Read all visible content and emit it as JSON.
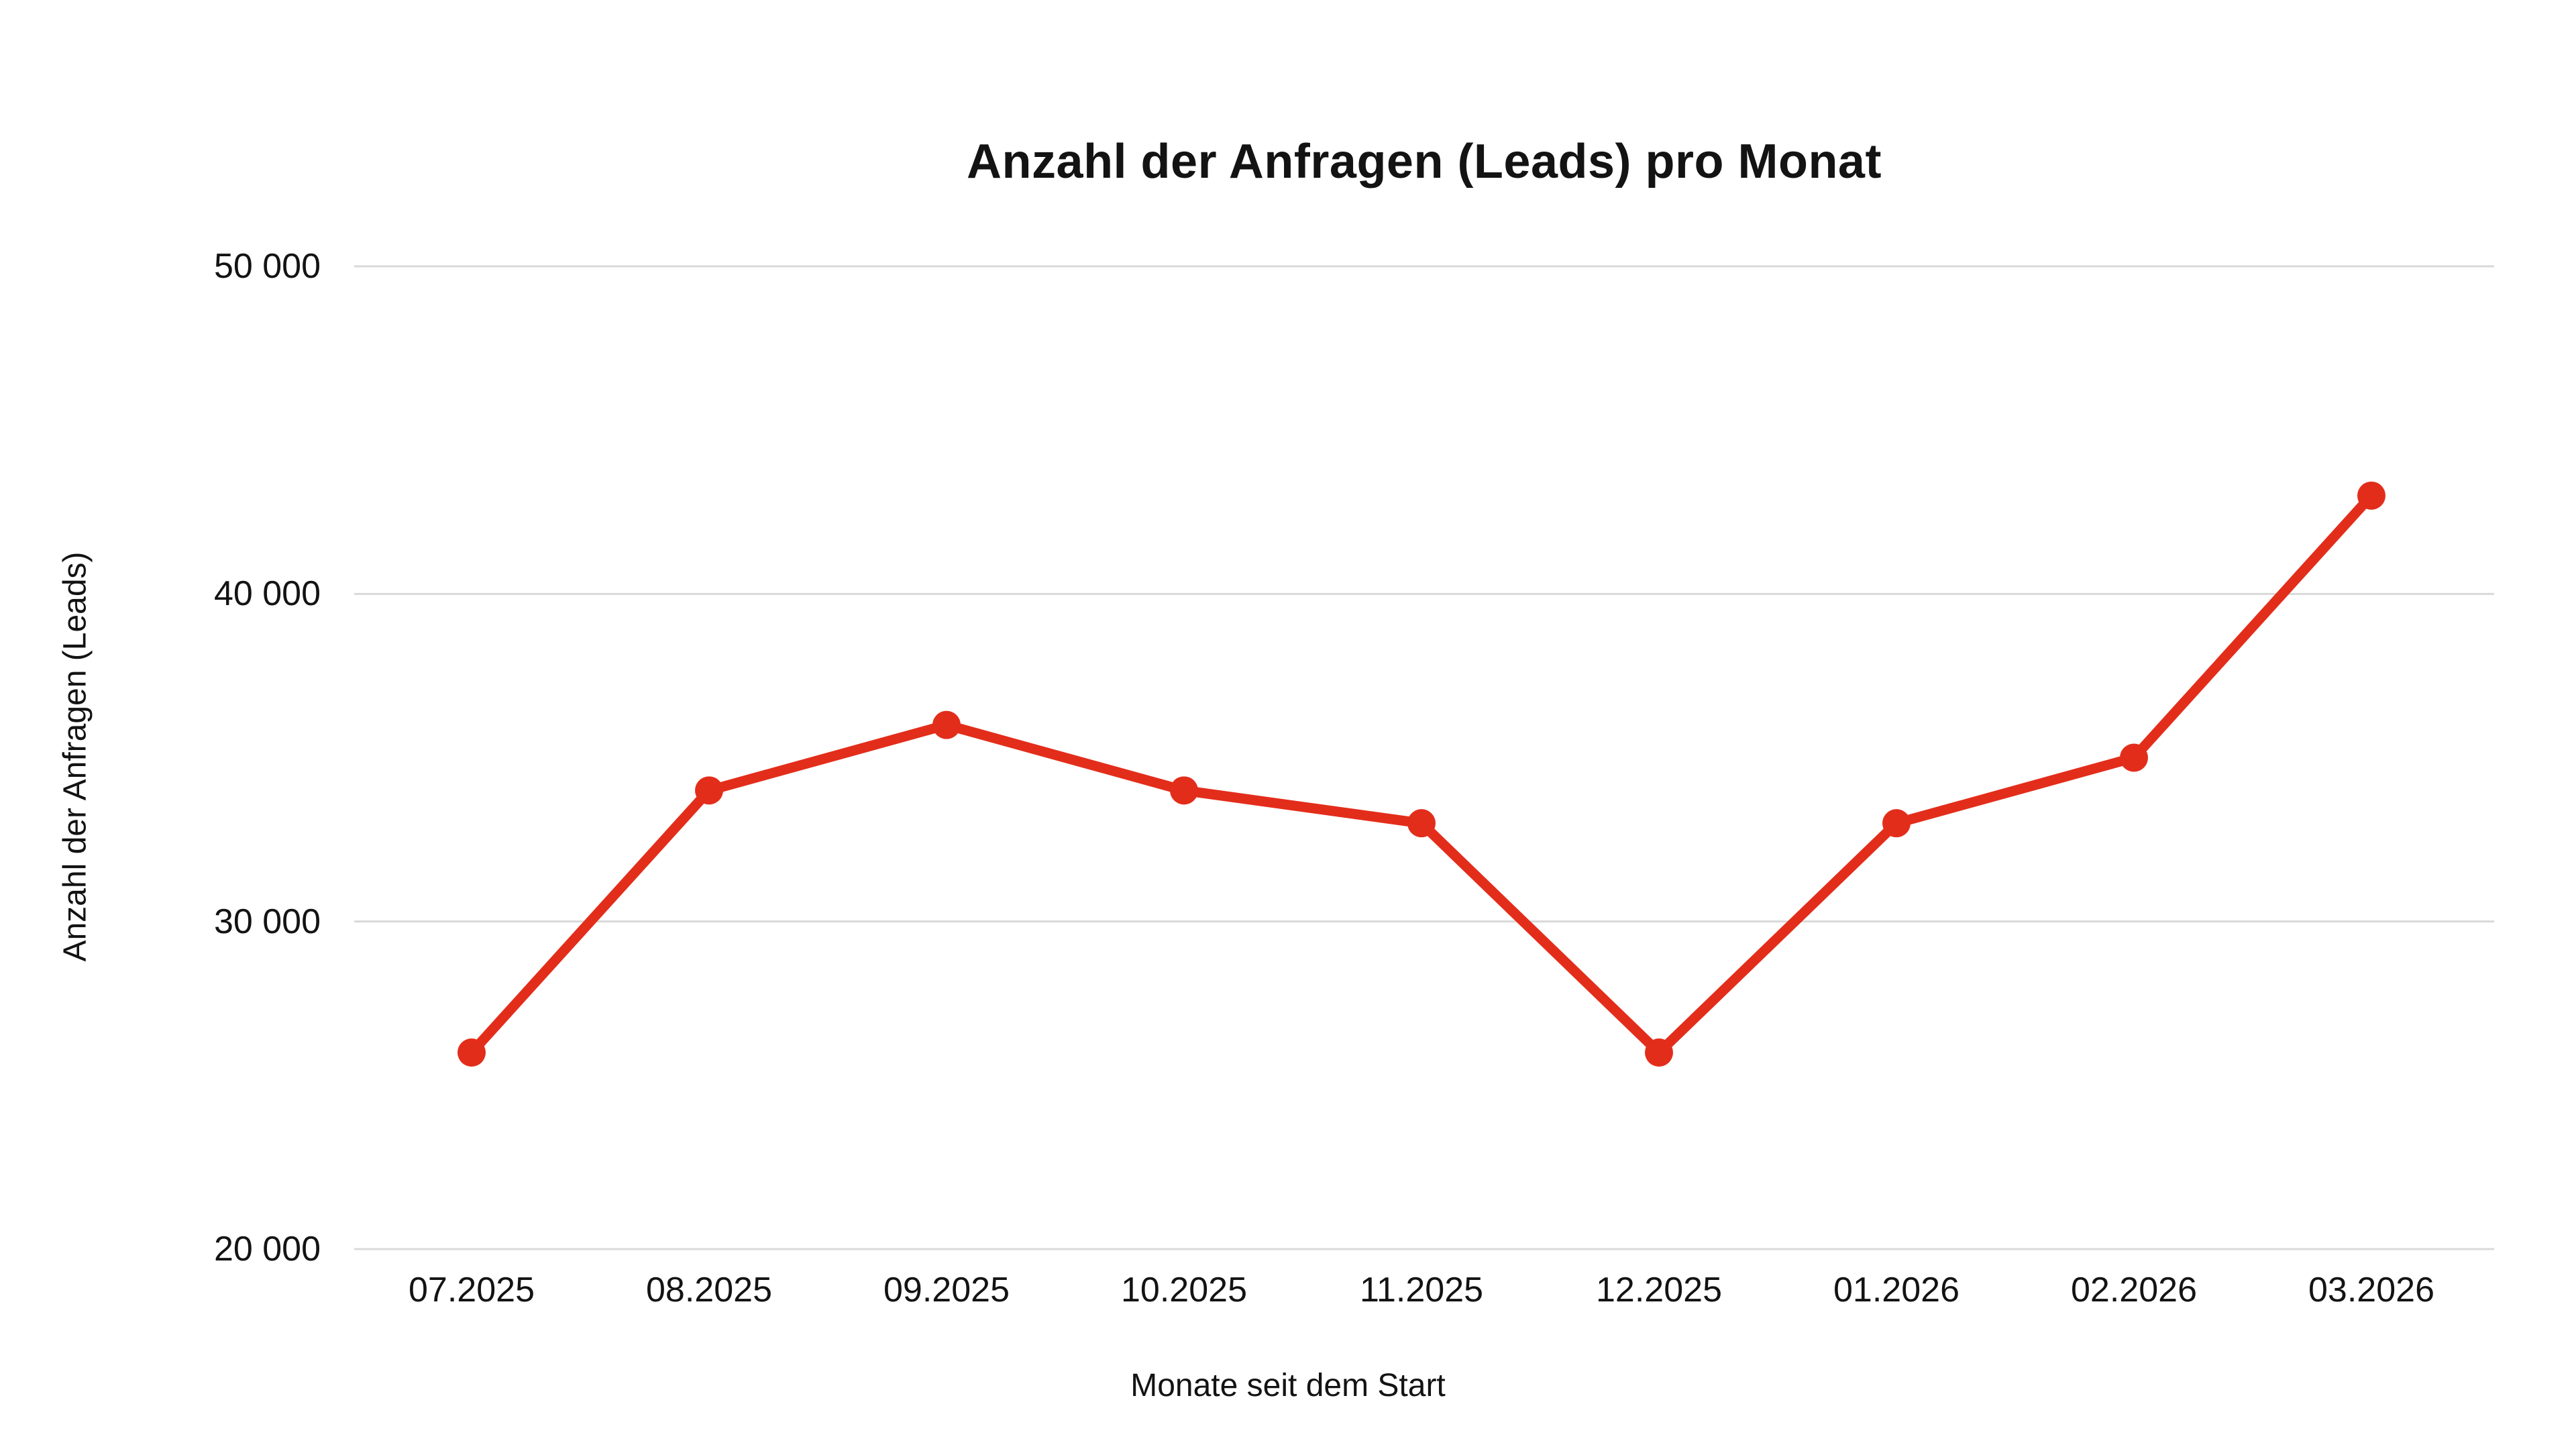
{
  "chart_data": {
    "type": "line",
    "title": "Anzahl der Anfragen (Leads) pro Monat",
    "xlabel": "Monate seit dem Start",
    "ylabel": "Anzahl der Anfragen (Leads)",
    "categories": [
      "07.2025",
      "08.2025",
      "09.2025",
      "10.2025",
      "11.2025",
      "12.2025",
      "01.2026",
      "02.2026",
      "03.2026"
    ],
    "series": [
      {
        "name": "Anfragen (Leads)",
        "values": [
          26000,
          34000,
          36000,
          34000,
          33000,
          26000,
          33000,
          35000,
          43000
        ]
      }
    ],
    "ylim": [
      20000,
      50000
    ],
    "yticks": [
      {
        "value": 20000,
        "label": "20 000"
      },
      {
        "value": 30000,
        "label": "30 000"
      },
      {
        "value": 40000,
        "label": "40 000"
      },
      {
        "value": 50000,
        "label": "50 000"
      }
    ],
    "grid": "horizontal",
    "legend": "none",
    "colors": {
      "line": "#e32d1b",
      "marker": "#e32d1b",
      "gridline": "#d9d9d9",
      "text": "#131313",
      "background": "#ffffff"
    }
  }
}
